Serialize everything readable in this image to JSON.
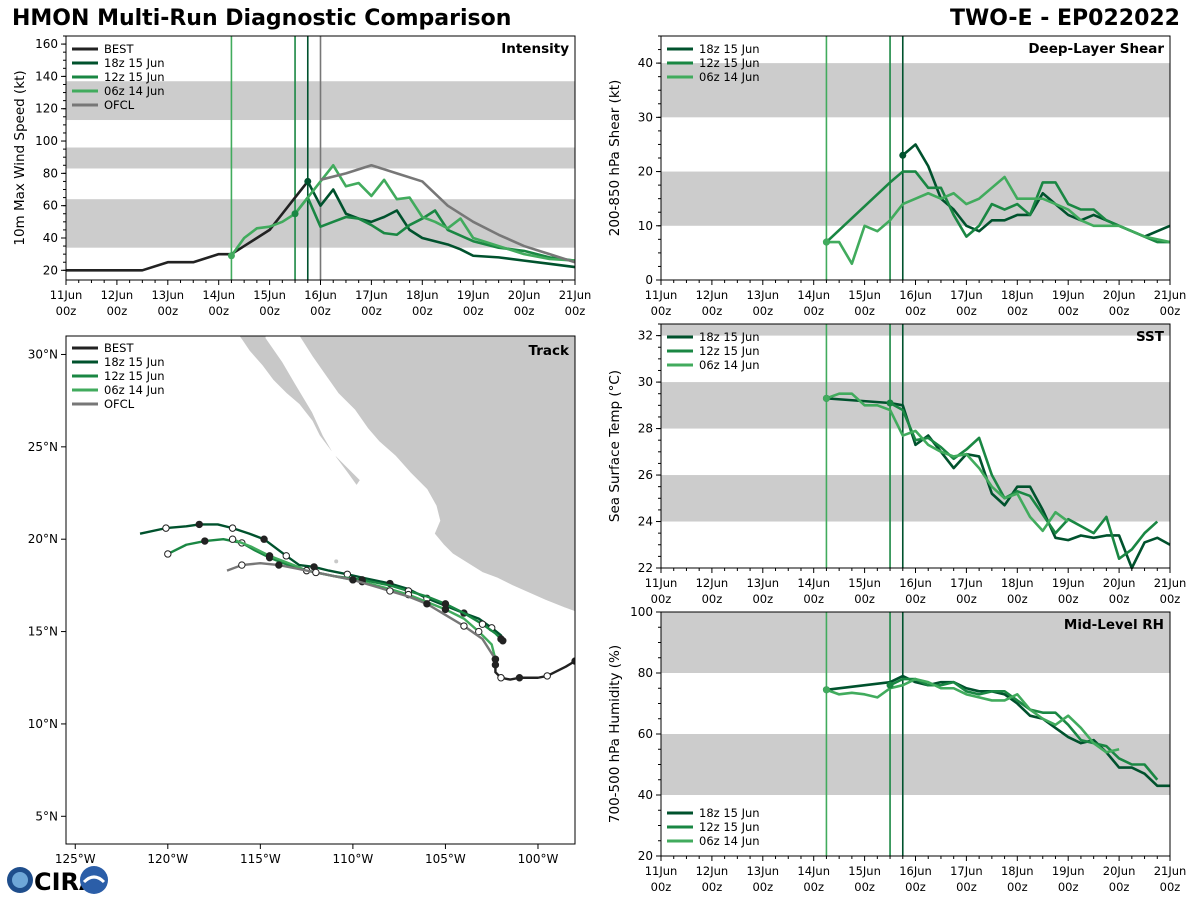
{
  "header": {
    "title": "HMON Multi-Run Diagnostic Comparison",
    "storm": "TWO-E - EP022022"
  },
  "logo": {
    "text": "CIRA"
  },
  "colors": {
    "BEST": "#222222",
    "18z 15 Jun": "#00522d",
    "12z 15 Jun": "#1a8743",
    "06z 14 Jun": "#41ab5d",
    "OFCL": "#777777",
    "band": "#cccccc",
    "land": "#c8c8c8"
  },
  "time_axis": {
    "tick_labels": [
      "11Jun\n00z",
      "12Jun\n00z",
      "13Jun\n00z",
      "14Jun\n00z",
      "15Jun\n00z",
      "16Jun\n00z",
      "17Jun\n00z",
      "18Jun\n00z",
      "19Jun\n00z",
      "20Jun\n00z",
      "21Jun\n00z"
    ],
    "init_days": [
      3.25,
      4.5,
      4.75
    ]
  },
  "chart_data": [
    {
      "id": "intensity",
      "type": "line",
      "title": "Intensity",
      "ylabel": "10m Max Wind Speed (kt)",
      "xlim": [
        0,
        10
      ],
      "ylim": [
        14,
        165
      ],
      "yticks": [
        20,
        40,
        60,
        80,
        100,
        120,
        140,
        160
      ],
      "bands": [
        [
          34,
          64
        ],
        [
          83,
          96
        ],
        [
          113,
          137
        ]
      ],
      "verticals": [
        3.25,
        4.5,
        4.75,
        5.0
      ],
      "legend": [
        "BEST",
        "18z 15 Jun",
        "12z 15 Jun",
        "06z 14 Jun",
        "OFCL"
      ],
      "series": [
        {
          "name": "BEST",
          "x": [
            0,
            0.5,
            1,
            1.5,
            2,
            2.5,
            3,
            3.25,
            3.5,
            3.75,
            4,
            4.25,
            4.5,
            4.75
          ],
          "y": [
            20,
            20,
            20,
            20,
            25,
            25,
            30,
            30,
            35,
            40,
            45,
            55,
            65,
            75
          ]
        },
        {
          "name": "18z 15 Jun",
          "x": [
            4.75,
            5,
            5.25,
            5.5,
            5.75,
            6,
            6.25,
            6.5,
            6.75,
            7,
            7.25,
            7.5,
            7.75,
            8,
            8.5,
            9,
            9.5,
            10
          ],
          "y": [
            75,
            60,
            70,
            55,
            52,
            50,
            53,
            57,
            45,
            40,
            38,
            36,
            33,
            29,
            28,
            26,
            24,
            22
          ]
        },
        {
          "name": "12z 15 Jun",
          "x": [
            4.5,
            4.75,
            5,
            5.25,
            5.5,
            5.75,
            6,
            6.25,
            6.5,
            6.75,
            7,
            7.25,
            7.5,
            8,
            8.5,
            9,
            9.5,
            10
          ],
          "y": [
            55,
            65,
            47,
            50,
            53,
            52,
            48,
            43,
            42,
            48,
            52,
            57,
            45,
            38,
            34,
            32,
            28,
            26
          ]
        },
        {
          "name": "06z 14 Jun",
          "x": [
            3.25,
            3.5,
            3.75,
            4,
            4.25,
            4.5,
            4.75,
            5,
            5.25,
            5.5,
            5.75,
            6,
            6.25,
            6.5,
            6.75,
            7,
            7.25,
            7.5,
            7.75,
            8,
            8.5,
            9,
            9.5,
            10
          ],
          "y": [
            29,
            40,
            46,
            47,
            50,
            55,
            65,
            75,
            85,
            72,
            74,
            66,
            76,
            64,
            65,
            53,
            50,
            46,
            52,
            40,
            35,
            30,
            27,
            26
          ]
        },
        {
          "name": "OFCL",
          "x": [
            5,
            5.5,
            6,
            6.5,
            7,
            7.5,
            8,
            8.5,
            9,
            9.5,
            10
          ],
          "y": [
            76,
            80,
            85,
            80,
            75,
            60,
            50,
            42,
            35,
            30,
            25
          ]
        }
      ]
    },
    {
      "id": "shear",
      "type": "line",
      "title": "Deep-Layer Shear",
      "ylabel": "200-850 hPa Shear (kt)",
      "xlim": [
        0,
        10
      ],
      "ylim": [
        0,
        45
      ],
      "yticks": [
        0,
        10,
        20,
        30,
        40
      ],
      "bands": [
        [
          10,
          20
        ],
        [
          30,
          40
        ]
      ],
      "verticals": [
        3.25,
        4.5,
        4.75
      ],
      "legend": [
        "18z 15 Jun",
        "12z 15 Jun",
        "06z 14 Jun"
      ],
      "series": [
        {
          "name": "18z 15 Jun",
          "x": [
            4.75,
            5,
            5.25,
            5.5,
            5.75,
            6,
            6.25,
            6.5,
            6.75,
            7,
            7.25,
            7.5,
            7.75,
            8,
            8.25,
            8.5,
            8.75,
            9,
            9.5,
            9.75,
            10
          ],
          "y": [
            23,
            25,
            21,
            15,
            13,
            10,
            9,
            11,
            11,
            12,
            12,
            16,
            14,
            12,
            11,
            12,
            11,
            10,
            8,
            9,
            10
          ]
        },
        {
          "name": "12z 15 Jun",
          "x": [
            3.25,
            4.5,
            4.75,
            5,
            5.25,
            5.5,
            5.75,
            6,
            6.25,
            6.5,
            6.75,
            7,
            7.25,
            7.5,
            7.75,
            8,
            8.25,
            8.5,
            8.75,
            9,
            9.5,
            9.75,
            10
          ],
          "y": [
            7,
            18,
            20,
            20,
            17,
            17,
            12,
            8,
            10,
            14,
            13,
            14,
            12,
            18,
            18,
            14,
            13,
            13,
            11,
            10,
            8,
            7,
            7
          ]
        },
        {
          "name": "06z 14 Jun",
          "x": [
            3.25,
            3.5,
            3.75,
            4,
            4.25,
            4.5,
            4.75,
            5,
            5.25,
            5.5,
            5.75,
            6,
            6.25,
            6.5,
            6.75,
            7,
            7.25,
            7.5,
            7.75,
            8,
            8.25,
            8.5,
            9,
            9.5,
            10
          ],
          "y": [
            7,
            7,
            3,
            10,
            9,
            11,
            14,
            15,
            16,
            15,
            16,
            14,
            15,
            17,
            19,
            15,
            15,
            15,
            14,
            13,
            11,
            10,
            10,
            8,
            7
          ]
        }
      ]
    },
    {
      "id": "track",
      "type": "line",
      "title": "Track",
      "xlabel": "",
      "xlim": [
        -125.5,
        -98
      ],
      "ylim": [
        3.5,
        31
      ],
      "xtick_values": [
        -125,
        -120,
        -115,
        -110,
        -105,
        -100
      ],
      "xtick_labels": [
        "125°W",
        "120°W",
        "115°W",
        "110°W",
        "105°W",
        "100°W"
      ],
      "ytick_values": [
        5,
        10,
        15,
        20,
        25,
        30
      ],
      "ytick_labels": [
        "5°N",
        "10°N",
        "15°N",
        "20°N",
        "25°N",
        "30°N"
      ],
      "legend": [
        "BEST",
        "18z 15 Jun",
        "12z 15 Jun",
        "06z 14 Jun",
        "OFCL"
      ],
      "series": [
        {
          "name": "BEST",
          "lon": [
            -98,
            -98.5,
            -99.5,
            -100,
            -101,
            -101.5,
            -102,
            -102.3,
            -102.3
          ],
          "lat": [
            13.4,
            13.1,
            12.6,
            12.5,
            12.5,
            12.4,
            12.5,
            12.8,
            13.2
          ]
        },
        {
          "name": "18z 15 Jun",
          "lon": [
            -101.9,
            -102,
            -102.5,
            -103.2,
            -104,
            -105,
            -106,
            -107,
            -108,
            -109.4,
            -110.3,
            -111.3,
            -112.1,
            -112.9,
            -113.6,
            -114,
            -114.8,
            -115.6,
            -116.5,
            -117.3,
            -118.3,
            -119,
            -120.1,
            -121.5
          ],
          "lat": [
            14.5,
            14.8,
            15.2,
            15.7,
            16.0,
            16.4,
            16.8,
            17.3,
            17.6,
            17.9,
            18.1,
            18.3,
            18.5,
            18.6,
            19.1,
            19.4,
            20.0,
            20.3,
            20.6,
            20.8,
            20.8,
            20.7,
            20.6,
            20.3
          ]
        },
        {
          "name": "12z 15 Jun",
          "lon": [
            -102,
            -102.3,
            -103,
            -104,
            -105,
            -106,
            -107,
            -108,
            -109.5,
            -111,
            -112.5,
            -113.5,
            -114.5,
            -115.3,
            -116,
            -117,
            -118,
            -119,
            -120
          ],
          "lat": [
            14.6,
            14.9,
            15.4,
            16.0,
            16.5,
            16.9,
            17.2,
            17.5,
            17.8,
            18.0,
            18.3,
            18.6,
            19.0,
            19.4,
            19.8,
            20.0,
            19.9,
            19.7,
            19.2
          ]
        },
        {
          "name": "06z 14 Jun",
          "lon": [
            -102.3,
            -102.5,
            -103.2,
            -104,
            -105,
            -106,
            -107,
            -108,
            -109.5,
            -111,
            -112.5,
            -113.2,
            -114.5,
            -115.5,
            -116.5
          ],
          "lat": [
            13.5,
            14.3,
            15.0,
            15.7,
            16.2,
            16.6,
            17.0,
            17.3,
            17.7,
            18.0,
            18.3,
            18.6,
            19.1,
            19.6,
            20.0
          ]
        },
        {
          "name": "OFCL",
          "lon": [
            -102.3,
            -103,
            -104,
            -105,
            -106,
            -107,
            -108,
            -109,
            -110,
            -111,
            -112,
            -113,
            -114,
            -115,
            -116,
            -116.8
          ],
          "lat": [
            13.5,
            14.6,
            15.3,
            15.9,
            16.5,
            16.9,
            17.2,
            17.5,
            17.8,
            18.0,
            18.2,
            18.4,
            18.6,
            18.7,
            18.6,
            18.3
          ]
        }
      ]
    },
    {
      "id": "sst",
      "type": "line",
      "title": "SST",
      "ylabel": "Sea Surface Temp (°C)",
      "xlim": [
        0,
        10
      ],
      "ylim": [
        22,
        32.5
      ],
      "yticks": [
        22,
        24,
        26,
        28,
        30,
        32
      ],
      "bands": [
        [
          24,
          26
        ],
        [
          28,
          30
        ],
        [
          32,
          32.5
        ]
      ],
      "verticals": [
        3.25,
        4.5,
        4.75
      ],
      "legend": [
        "18z 15 Jun",
        "12z 15 Jun",
        "06z 14 Jun"
      ],
      "series": [
        {
          "name": "18z 15 Jun",
          "x": [
            3.25,
            4.5,
            4.75,
            5,
            5.25,
            5.5,
            5.75,
            6,
            6.25,
            6.5,
            6.75,
            7,
            7.25,
            7.5,
            7.75,
            8,
            8.25,
            8.5,
            8.75,
            9,
            9.25,
            9.5,
            9.75,
            10
          ],
          "y": [
            29.3,
            29.1,
            29.0,
            27.3,
            27.7,
            27.0,
            26.3,
            26.9,
            26.8,
            25.2,
            24.7,
            25.5,
            25.5,
            24.5,
            23.3,
            23.2,
            23.4,
            23.3,
            23.4,
            23.4,
            22.0,
            23.1,
            23.3,
            23.0
          ]
        },
        {
          "name": "12z 15 Jun",
          "x": [
            4.5,
            4.75,
            5,
            5.25,
            5.5,
            5.75,
            6,
            6.25,
            6.5,
            6.75,
            7,
            7.25,
            7.5,
            7.75,
            8,
            8.25,
            8.5,
            8.75,
            9,
            9.25,
            9.5,
            9.75
          ],
          "y": [
            29.1,
            28.8,
            27.5,
            27.6,
            27.2,
            26.7,
            27.1,
            27.6,
            26.0,
            25.0,
            25.3,
            25.1,
            24.3,
            23.5,
            24.1,
            23.8,
            23.5,
            24.2,
            22.4,
            22.8,
            23.5,
            24.0
          ]
        },
        {
          "name": "06z 14 Jun",
          "x": [
            3.25,
            3.5,
            3.75,
            4,
            4.25,
            4.5,
            4.75,
            5,
            5.25,
            5.5,
            5.75,
            6,
            6.25,
            6.5,
            6.75,
            7,
            7.25,
            7.5,
            7.75,
            8
          ],
          "y": [
            29.3,
            29.5,
            29.5,
            29.0,
            29.0,
            28.8,
            27.7,
            27.9,
            27.3,
            27.0,
            26.8,
            26.9,
            26.3,
            25.5,
            25.0,
            25.2,
            24.2,
            23.6,
            24.4,
            24.0
          ]
        }
      ]
    },
    {
      "id": "rh",
      "type": "line",
      "title": "Mid-Level RH",
      "ylabel": "700-500 hPa Humidity (%)",
      "xlim": [
        0,
        10
      ],
      "ylim": [
        20,
        100
      ],
      "yticks": [
        20,
        40,
        60,
        80,
        100
      ],
      "bands": [
        [
          40,
          60
        ],
        [
          80,
          100
        ]
      ],
      "verticals": [
        3.25,
        4.5,
        4.75
      ],
      "legend": [
        "18z 15 Jun",
        "12z 15 Jun",
        "06z 14 Jun"
      ],
      "series": [
        {
          "name": "18z 15 Jun",
          "x": [
            3.25,
            4.5,
            4.75,
            5,
            5.25,
            5.5,
            5.75,
            6,
            6.25,
            6.5,
            6.75,
            7,
            7.25,
            7.5,
            7.75,
            8,
            8.25,
            8.5,
            8.75,
            9,
            9.25,
            9.5,
            9.75,
            10
          ],
          "y": [
            74.5,
            77,
            79,
            77,
            76,
            77,
            77,
            75,
            74,
            74,
            73,
            70,
            66,
            65,
            62,
            59,
            57,
            58,
            54,
            49,
            49,
            47,
            43,
            43
          ]
        },
        {
          "name": "12z 15 Jun",
          "x": [
            4.5,
            4.75,
            5,
            5.25,
            5.5,
            5.75,
            6,
            6.25,
            6.5,
            6.75,
            7,
            7.25,
            7.5,
            7.75,
            8,
            8.25,
            8.5,
            8.75,
            9,
            9.25,
            9.5,
            9.75
          ],
          "y": [
            76,
            78,
            78,
            76,
            76,
            77,
            74,
            73,
            74,
            74,
            71,
            68,
            67,
            67,
            63,
            58,
            57,
            56,
            52,
            50,
            50,
            45
          ]
        },
        {
          "name": "06z 14 Jun",
          "x": [
            3.25,
            3.5,
            3.75,
            4,
            4.25,
            4.5,
            4.75,
            5,
            5.25,
            5.5,
            5.75,
            6,
            6.25,
            6.5,
            6.75,
            7,
            7.25,
            7.5,
            7.75,
            8,
            8.25,
            8.5,
            8.75,
            9
          ],
          "y": [
            74.5,
            73,
            73.5,
            73,
            72,
            75,
            76,
            78,
            77,
            75,
            75,
            73,
            72,
            71,
            71,
            73,
            68,
            65,
            63,
            66,
            62,
            57,
            54,
            55
          ]
        }
      ]
    }
  ]
}
